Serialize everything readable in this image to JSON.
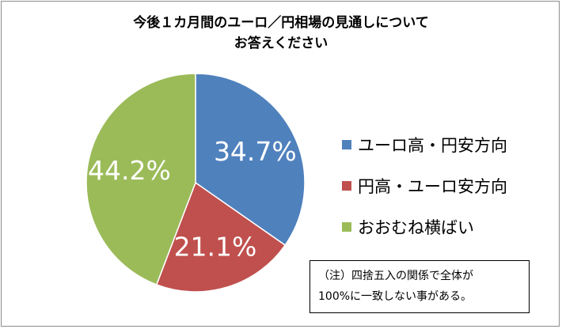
{
  "chart_data": {
    "type": "pie",
    "title": [
      "今後１カ月間のユーロ／円相場の見通しについて",
      "お答えください"
    ],
    "slices": [
      {
        "label": "ユーロ高・円安方向",
        "value": 34.7,
        "display": "34.7%",
        "color": "#4f81bd"
      },
      {
        "label": "円高・ユーロ安方向",
        "value": 21.1,
        "display": "21.1%",
        "color": "#c0504d"
      },
      {
        "label": "おおむね横ばい",
        "value": 44.2,
        "display": "44.2%",
        "color": "#9bbb59"
      }
    ],
    "legend_position": "right"
  },
  "note": {
    "line1": "（注）四捨五入の関係で全体が",
    "line2": "100%に一致しない事がある。"
  }
}
